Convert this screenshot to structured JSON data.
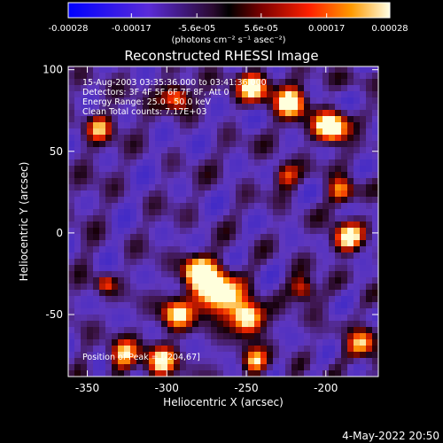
{
  "chart_data": {
    "type": "heatmap",
    "title": "Reconstructed RHESSI Image",
    "xlabel": "Heliocentric X (arcsec)",
    "ylabel": "Heliocentric Y (arcsec)",
    "xlim": [
      -362,
      -167
    ],
    "ylim": [
      -88,
      102
    ],
    "xticks": [
      -350,
      -300,
      -250,
      -200
    ],
    "yticks": [
      -50,
      0,
      50,
      100
    ],
    "colorbar": {
      "label": "(photons cm⁻² s⁻¹ asec⁻²)",
      "tick_labels": [
        "-0.00028",
        "-0.00017",
        "-5.6e-05",
        "5.6e-05",
        "0.00017",
        "0.00028"
      ],
      "ticks": [
        -0.00028,
        -0.00017,
        -5.6e-05,
        5.6e-05,
        0.00017,
        0.00028
      ],
      "range": [
        -0.00028,
        0.00028
      ]
    },
    "annotations": [
      "15-Aug-2003 03:35:36.000 to 03:41:36.000",
      "Detectors: 3F 4F 5F 6F 7F 8F, Att 0",
      "Energy Range: 25.0 - 50.0 keV",
      "Clean    Total counts: 7.17E+03"
    ],
    "peak_label": "Position of Peak = [-204,67]",
    "peak_position": [
      -204,
      67
    ]
  },
  "footer": {
    "timestamp": "4-May-2022 20:50"
  }
}
